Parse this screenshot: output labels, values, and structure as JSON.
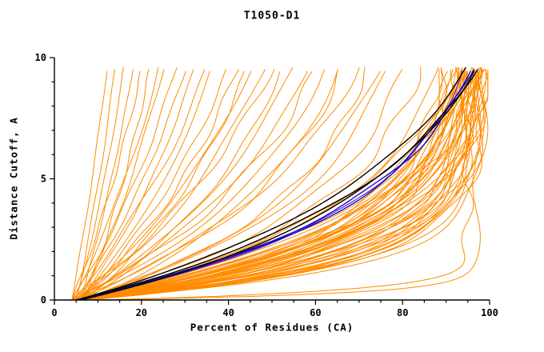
{
  "chart_data": {
    "type": "line",
    "title": "T1050-D1",
    "xlabel": "Percent of Residues (CA)",
    "ylabel": "Distance Cutoff, A",
    "xlim": [
      0,
      100
    ],
    "ylim": [
      0,
      10
    ],
    "xticks": [
      0,
      20,
      40,
      60,
      80,
      100
    ],
    "yticks": [
      0,
      5,
      10
    ],
    "x_minor_step": 5,
    "y_minor_step": 1,
    "grid": "off",
    "legend": "none",
    "colors": {
      "ensemble": "#ff8c00",
      "highlight": "#000000",
      "accent_blue": "#0000cd",
      "accent_purple": "#7b2fbe",
      "axis": "#000000",
      "background": "#ffffff"
    },
    "curve_model": "x(y) = x0 + (x_end - x0) * (1-exp(-y/tau)) / (1-exp(-y_max/tau))",
    "series": {
      "orange_curves": [
        [
          5,
          97,
          1.6
        ],
        [
          6,
          96,
          1.9
        ],
        [
          4,
          95,
          2.2
        ],
        [
          7,
          98,
          1.4
        ],
        [
          5,
          94,
          2.6
        ],
        [
          6,
          99,
          1.5
        ],
        [
          4,
          92,
          2.9
        ],
        [
          8,
          97,
          2.0
        ],
        [
          5,
          96,
          2.3
        ],
        [
          6,
          93,
          2.8
        ],
        [
          4,
          98,
          1.7
        ],
        [
          7,
          95,
          2.5
        ],
        [
          5,
          99,
          1.3
        ],
        [
          6,
          97,
          2.1
        ],
        [
          4,
          96,
          2.7
        ],
        [
          8,
          94,
          3.0
        ],
        [
          5,
          98,
          1.8
        ],
        [
          6,
          95,
          2.4
        ],
        [
          7,
          99,
          1.6
        ],
        [
          4,
          93,
          3.1
        ],
        [
          5,
          97,
          2.2
        ],
        [
          6,
          98,
          1.5
        ],
        [
          7,
          96,
          2.6
        ],
        [
          4,
          94,
          2.0
        ],
        [
          8,
          99,
          1.9
        ],
        [
          5,
          95,
          2.8
        ],
        [
          6,
          96,
          1.7
        ],
        [
          4,
          99,
          2.4
        ],
        [
          7,
          97,
          3.0
        ],
        [
          5,
          92,
          2.5
        ],
        [
          6,
          94,
          1.8
        ],
        [
          8,
          98,
          2.2
        ],
        [
          4,
          97,
          2.9
        ],
        [
          5,
          96,
          1.4
        ],
        [
          7,
          93,
          2.7
        ],
        [
          6,
          99,
          2.0
        ],
        [
          4,
          95,
          3.2
        ],
        [
          8,
          96,
          1.6
        ],
        [
          5,
          98,
          2.6
        ],
        [
          6,
          92,
          2.3
        ],
        [
          7,
          94,
          1.5
        ],
        [
          4,
          91,
          2.1
        ],
        [
          5,
          93,
          3.4
        ],
        [
          6,
          90,
          2.7
        ],
        [
          7,
          89,
          2.4
        ],
        [
          5,
          90,
          1.9
        ],
        [
          6,
          88,
          3.6
        ],
        [
          4,
          89,
          2.8
        ],
        [
          5,
          95,
          3.9
        ],
        [
          6,
          93,
          4.4
        ],
        [
          5,
          80,
          4.0
        ],
        [
          6,
          75,
          5.0
        ],
        [
          4,
          70,
          6.0
        ],
        [
          7,
          65,
          5.5
        ],
        [
          5,
          60,
          7.0
        ],
        [
          6,
          55,
          8.0
        ],
        [
          4,
          50,
          9.0
        ],
        [
          5,
          45,
          10
        ],
        [
          6,
          40,
          11
        ],
        [
          4,
          35,
          12
        ],
        [
          5,
          30,
          13
        ],
        [
          6,
          25,
          14
        ],
        [
          4,
          20,
          15
        ],
        [
          5,
          16,
          16
        ],
        [
          6,
          42,
          9.0
        ],
        [
          4,
          58,
          6.5
        ],
        [
          7,
          72,
          4.5
        ],
        [
          5,
          66,
          5.2
        ],
        [
          6,
          36,
          10
        ],
        [
          4,
          28,
          12
        ],
        [
          5,
          48,
          8.0
        ],
        [
          7,
          52,
          7.0
        ],
        [
          4,
          24,
          13
        ],
        [
          6,
          32,
          11
        ],
        [
          5,
          76,
          4.2
        ],
        [
          6,
          84,
          3.8
        ],
        [
          4,
          62,
          5.8
        ],
        [
          7,
          44,
          8.5
        ],
        [
          5,
          14,
          20
        ],
        [
          6,
          18,
          18
        ],
        [
          4,
          12,
          22
        ],
        [
          7,
          22,
          16
        ],
        [
          8,
          97,
          0.28
        ],
        [
          10,
          95,
          0.4
        ]
      ],
      "purple_curves": [
        [
          5,
          94,
          3.8
        ]
      ],
      "blue_curves": [
        [
          5,
          96,
          4.2
        ],
        [
          6,
          95,
          4.0
        ]
      ],
      "black_curves": [
        [
          5,
          97,
          5.0
        ],
        [
          6,
          96,
          4.6
        ],
        [
          5,
          95,
          5.5
        ]
      ]
    }
  }
}
